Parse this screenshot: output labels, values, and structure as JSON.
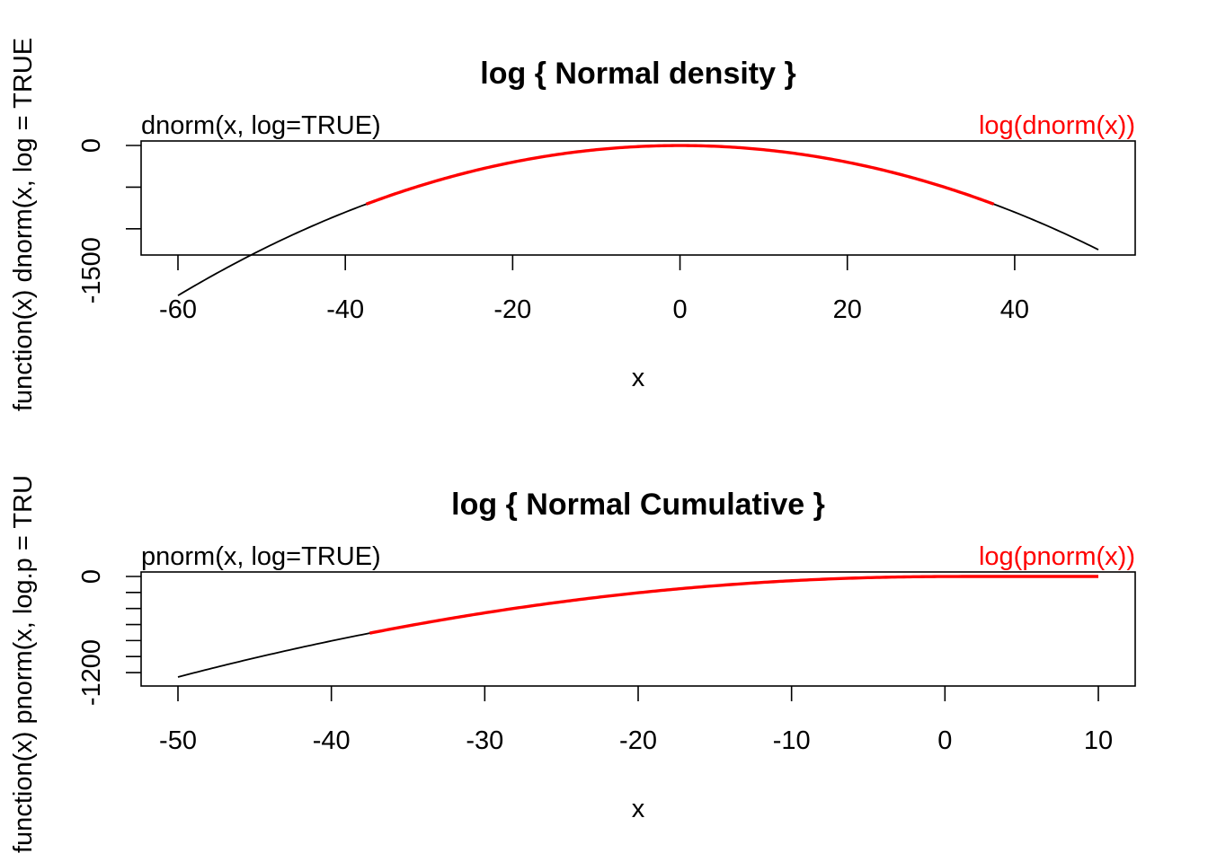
{
  "colors": {
    "exact": "#000000",
    "naive": "#ff0000"
  },
  "chart_data": [
    {
      "type": "line",
      "title": "log { Normal density }",
      "xlabel": "x",
      "ylabel": "function(x) dnorm(x, log = TRUE",
      "xlim": [
        -60,
        50
      ],
      "ylim": [
        -1250,
        0
      ],
      "xticks": [
        -60,
        -40,
        -20,
        0,
        20,
        40
      ],
      "xtick_labels": [
        "-60",
        "-40",
        "-20",
        "0",
        "20",
        "40"
      ],
      "yticks": [
        0,
        -500,
        -1000,
        -1500
      ],
      "ytick_labels": [
        "0",
        "",
        "-1500"
      ],
      "ytick_label_values": [
        0,
        -1000,
        -1500
      ],
      "annotation_left": "dnorm(x, log=TRUE)",
      "annotation_right": "log(dnorm(x))",
      "series": [
        {
          "name": "dnorm(x, log=TRUE)",
          "x_range": [
            -60,
            50
          ],
          "color": "#000000",
          "kind": "log_density"
        },
        {
          "name": "log(dnorm(x))",
          "x_range": [
            -37.5,
            37.5
          ],
          "color": "#ff0000",
          "kind": "log_density"
        }
      ]
    },
    {
      "type": "line",
      "title": "log { Normal Cumulative }",
      "xlabel": "x",
      "ylabel": "function(x) pnorm(x, log.p = TRU",
      "xlim": [
        -50,
        10
      ],
      "ylim": [
        -1300,
        0
      ],
      "xticks": [
        -50,
        -40,
        -30,
        -20,
        -10,
        0,
        10
      ],
      "xtick_labels": [
        "-50",
        "-40",
        "-30",
        "-20",
        "-10",
        "0",
        "10"
      ],
      "yticks": [
        0,
        -200,
        -400,
        -600,
        -800,
        -1000,
        -1200
      ],
      "ytick_labels": [
        "0",
        "-1200"
      ],
      "ytick_label_values": [
        0,
        -1200
      ],
      "annotation_left": "pnorm(x, log=TRUE)",
      "annotation_right": "log(pnorm(x))",
      "series": [
        {
          "name": "pnorm(x, log=TRUE)",
          "x_range": [
            -50,
            10
          ],
          "color": "#000000",
          "kind": "log_cdf"
        },
        {
          "name": "log(pnorm(x))",
          "x_range": [
            -37.5,
            10
          ],
          "color": "#ff0000",
          "kind": "log_cdf"
        }
      ]
    }
  ]
}
